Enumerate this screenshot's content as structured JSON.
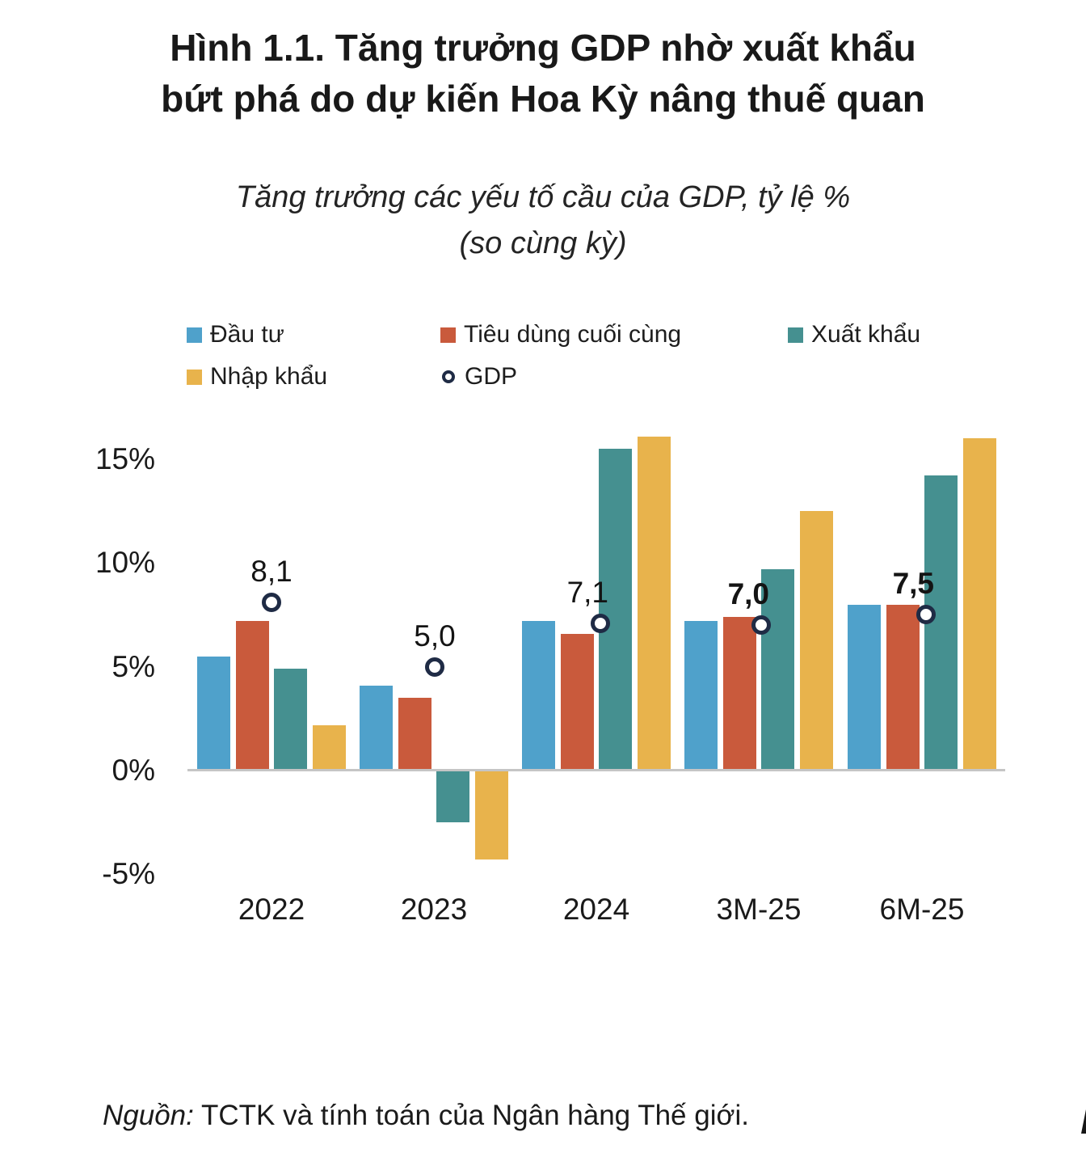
{
  "title": "Hình 1.1. Tăng trưởng GDP nhờ xuất khẩu\nbứt phá do dự kiến Hoa Kỳ nâng thuế quan",
  "subtitle": "Tăng trưởng các yếu tố cầu của GDP, tỷ lệ %\n(so cùng kỳ)",
  "legend": [
    {
      "label": "Đầu tư",
      "color": "#4FA1CB",
      "marker": "square"
    },
    {
      "label": "Tiêu dùng cuối cùng",
      "color": "#C95A3C",
      "marker": "square"
    },
    {
      "label": "Xuất khẩu",
      "color": "#459090",
      "marker": "square"
    },
    {
      "label": "Nhập khẩu",
      "color": "#E8B34C",
      "marker": "square"
    },
    {
      "label": "GDP",
      "color": "#1F2B45",
      "marker": "ring"
    }
  ],
  "chart_data": {
    "type": "bar",
    "categories": [
      "2022",
      "2023",
      "2024",
      "3M-25",
      "6M-25"
    ],
    "series": [
      {
        "name": "Đầu tư",
        "type": "bar",
        "color": "#4FA1CB",
        "values": [
          5.5,
          4.1,
          7.2,
          7.2,
          8.0
        ]
      },
      {
        "name": "Tiêu dùng cuối cùng",
        "type": "bar",
        "color": "#C95A3C",
        "values": [
          7.2,
          3.5,
          6.6,
          7.4,
          8.0
        ]
      },
      {
        "name": "Xuất khẩu",
        "type": "bar",
        "color": "#459090",
        "values": [
          4.9,
          -2.5,
          15.5,
          9.7,
          14.2
        ]
      },
      {
        "name": "Nhập khẩu",
        "type": "bar",
        "color": "#E8B34C",
        "values": [
          2.2,
          -4.3,
          16.1,
          12.5,
          16.0
        ]
      },
      {
        "name": "GDP",
        "type": "scatter",
        "marker": "circle-outline",
        "color": "#1F2B45",
        "fill": "#FFFFFF",
        "values": [
          8.1,
          5.0,
          7.1,
          7.0,
          7.5
        ],
        "point_labels": [
          "8,1",
          "5,0",
          "7,1",
          "7,0",
          "7,5"
        ],
        "point_label_bold": [
          false,
          false,
          false,
          true,
          true
        ]
      }
    ],
    "y_ticks": [
      {
        "value": 15,
        "label": "15%"
      },
      {
        "value": 10,
        "label": "10%"
      },
      {
        "value": 5,
        "label": "5%"
      },
      {
        "value": 0,
        "label": "0%"
      },
      {
        "value": -5,
        "label": "-5%"
      }
    ],
    "ylim": [
      -5.5,
      16.5
    ],
    "grid": false,
    "legend_position": "top",
    "xlabel": "",
    "ylabel": ""
  },
  "source": {
    "prefix": "Nguồn:",
    "text": " TCTK và tính toán của Ngân hàng Thế giới."
  },
  "colors": {
    "axis_line": "#C5C5C5",
    "background": "#FFFFFF",
    "text": "#1A1A1A"
  }
}
